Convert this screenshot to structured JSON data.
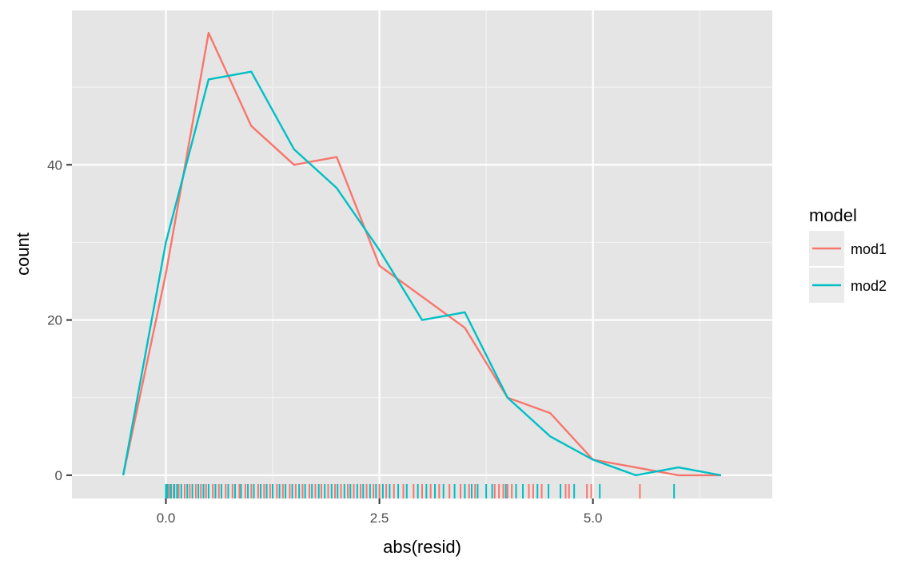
{
  "chart_data": {
    "type": "line",
    "title": "",
    "xlabel": "abs(resid)",
    "ylabel": "count",
    "xlim": [
      -1.1,
      7.1
    ],
    "ylim": [
      -3,
      60
    ],
    "x_ticks": [
      0.0,
      2.5,
      5.0
    ],
    "x_tick_labels": [
      "0.0",
      "2.5",
      "5.0"
    ],
    "y_ticks": [
      0,
      20,
      40
    ],
    "y_tick_labels": [
      "0",
      "20",
      "40"
    ],
    "grid": true,
    "background_color": "#e5e5e5",
    "legend": {
      "title": "model",
      "position": "right"
    },
    "series": [
      {
        "name": "mod1",
        "color": "#F8766D",
        "x": [
          -0.5,
          0.0,
          0.5,
          1.0,
          1.5,
          2.0,
          2.5,
          3.0,
          3.5,
          4.0,
          4.5,
          5.0,
          5.5,
          6.0,
          6.5
        ],
        "y": [
          0,
          26,
          57,
          45,
          40,
          41,
          27,
          23,
          19,
          10,
          8,
          2,
          1,
          0,
          0
        ]
      },
      {
        "name": "mod2",
        "color": "#00BFC4",
        "x": [
          -0.5,
          0.0,
          0.5,
          1.0,
          1.5,
          2.0,
          2.5,
          3.0,
          3.5,
          4.0,
          4.5,
          5.0,
          5.5,
          6.0,
          6.5
        ],
        "y": [
          0,
          30,
          51,
          52,
          42,
          37,
          29,
          20,
          21,
          10,
          5,
          2,
          0,
          1,
          0
        ]
      }
    ],
    "rug": [
      {
        "name": "mod1",
        "color": "#F8766D",
        "x": [
          0.01,
          0.04,
          0.09,
          0.15,
          0.22,
          0.28,
          0.35,
          0.41,
          0.47,
          0.55,
          0.62,
          0.7,
          0.78,
          0.86,
          0.93,
          1.0,
          1.08,
          1.15,
          1.22,
          1.3,
          1.37,
          1.45,
          1.52,
          1.6,
          1.68,
          1.75,
          1.82,
          1.9,
          1.98,
          2.05,
          2.13,
          2.2,
          2.28,
          2.35,
          2.43,
          2.5,
          2.58,
          2.67,
          2.78,
          2.9,
          3.0,
          3.1,
          3.2,
          3.32,
          3.45,
          3.55,
          3.62,
          3.85,
          3.9,
          3.95,
          4.0,
          4.05,
          4.25,
          4.3,
          4.4,
          4.68,
          4.72,
          4.93,
          4.98,
          5.55
        ]
      },
      {
        "name": "mod2",
        "color": "#00BFC4",
        "x": [
          0.0,
          0.02,
          0.06,
          0.1,
          0.13,
          0.18,
          0.25,
          0.31,
          0.38,
          0.44,
          0.5,
          0.58,
          0.65,
          0.73,
          0.81,
          0.88,
          0.96,
          1.03,
          1.11,
          1.18,
          1.25,
          1.33,
          1.4,
          1.48,
          1.56,
          1.63,
          1.71,
          1.79,
          1.86,
          1.94,
          2.01,
          2.09,
          2.16,
          2.24,
          2.31,
          2.39,
          2.46,
          2.54,
          2.62,
          2.72,
          2.82,
          2.95,
          3.05,
          3.15,
          3.25,
          3.38,
          3.5,
          3.58,
          3.65,
          3.75,
          3.82,
          3.98,
          4.1,
          4.18,
          4.35,
          4.48,
          4.62,
          4.78,
          5.08,
          5.95
        ]
      }
    ]
  }
}
